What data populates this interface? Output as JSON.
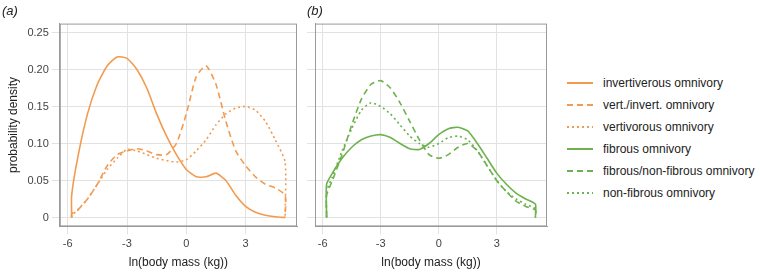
{
  "chart_data": [
    {
      "type": "line",
      "title": "(a)",
      "x_label": "ln(body mass (kg))",
      "y_label": "probability density",
      "x": [
        -5.8,
        -5.8,
        -5.5,
        -5,
        -4.5,
        -4,
        -3.5,
        -3,
        -2.5,
        -2,
        -1.5,
        -1,
        -0.5,
        0,
        0.5,
        1,
        1.5,
        2,
        2.5,
        3,
        3.5,
        4,
        4.5,
        5,
        5
      ],
      "series": [
        {
          "name": "invertiverous omnivory",
          "color": "#f29b50",
          "line_style": "solid",
          "values": [
            0,
            0.03,
            0.08,
            0.14,
            0.18,
            0.205,
            0.217,
            0.215,
            0.2,
            0.175,
            0.14,
            0.11,
            0.085,
            0.065,
            0.055,
            0.055,
            0.06,
            0.05,
            0.03,
            0.015,
            0.007,
            0.003,
            0.001,
            0,
            0
          ]
        },
        {
          "name": "vert./invert. omnivory",
          "color": "#f29b50",
          "line_style": "dashed",
          "values": [
            0,
            0.005,
            0.01,
            0.025,
            0.045,
            0.07,
            0.085,
            0.09,
            0.093,
            0.09,
            0.085,
            0.085,
            0.1,
            0.14,
            0.19,
            0.205,
            0.18,
            0.13,
            0.09,
            0.07,
            0.055,
            0.045,
            0.04,
            0.03,
            0
          ]
        },
        {
          "name": "vertivorous omnivory",
          "color": "#f29b50",
          "line_style": "dotted",
          "values": [
            0,
            0.003,
            0.01,
            0.025,
            0.045,
            0.065,
            0.08,
            0.092,
            0.09,
            0.085,
            0.08,
            0.077,
            0.075,
            0.078,
            0.09,
            0.105,
            0.125,
            0.14,
            0.148,
            0.15,
            0.145,
            0.13,
            0.105,
            0.075,
            0
          ]
        }
      ],
      "xlim": [
        -6.4,
        5.6
      ],
      "xticks": [
        -6,
        -3,
        0,
        3
      ],
      "ylim": [
        -0.012,
        0.262
      ],
      "yticks": [
        0,
        0.05,
        {
          "value": 0.1,
          "label": "0.10"
        },
        0.15,
        {
          "value": 0.2,
          "label": "0.20"
        },
        0.25
      ],
      "grid": true,
      "legend": "right"
    },
    {
      "type": "line",
      "title": "(b)",
      "x_label": "ln(body mass (kg))",
      "x": [
        -5.8,
        -5.8,
        -5.5,
        -5,
        -4.5,
        -4,
        -3.5,
        -3,
        -2.5,
        -2,
        -1.5,
        -1,
        -0.5,
        0,
        0.5,
        1,
        1.5,
        2,
        2.5,
        3,
        3.5,
        4,
        4.5,
        5,
        5
      ],
      "series": [
        {
          "name": "fibrous omnivory",
          "color": "#6db24c",
          "line_style": "solid",
          "values": [
            0,
            0.045,
            0.06,
            0.08,
            0.095,
            0.105,
            0.11,
            0.112,
            0.108,
            0.1,
            0.093,
            0.092,
            0.1,
            0.112,
            0.12,
            0.122,
            0.117,
            0.1,
            0.08,
            0.06,
            0.045,
            0.033,
            0.025,
            0.018,
            0
          ]
        },
        {
          "name": "fibrous/non-fibrous omnivory",
          "color": "#6db24c",
          "line_style": "dashed",
          "values": [
            0,
            0.03,
            0.05,
            0.085,
            0.125,
            0.16,
            0.18,
            0.185,
            0.175,
            0.155,
            0.13,
            0.105,
            0.085,
            0.08,
            0.085,
            0.095,
            0.1,
            0.09,
            0.07,
            0.05,
            0.035,
            0.022,
            0.015,
            0.01,
            0
          ]
        },
        {
          "name": "non-fibrous omnivory",
          "color": "#6db24c",
          "line_style": "dotted",
          "values": [
            0,
            0.035,
            0.055,
            0.09,
            0.12,
            0.145,
            0.155,
            0.15,
            0.14,
            0.125,
            0.11,
            0.1,
            0.095,
            0.1,
            0.108,
            0.11,
            0.105,
            0.09,
            0.07,
            0.05,
            0.035,
            0.025,
            0.018,
            0.012,
            0
          ]
        }
      ],
      "xlim": [
        -6.4,
        5.6
      ],
      "xticks": [
        -6,
        -3,
        0,
        3
      ],
      "ylim": [
        -0.012,
        0.262
      ],
      "yticks": [
        0,
        0.05,
        {
          "value": 0.1,
          "label": "0.10"
        },
        0.15,
        {
          "value": 0.2,
          "label": "0.20"
        },
        0.25
      ],
      "grid": true,
      "tick_labels": "x",
      "legend": "right"
    }
  ]
}
